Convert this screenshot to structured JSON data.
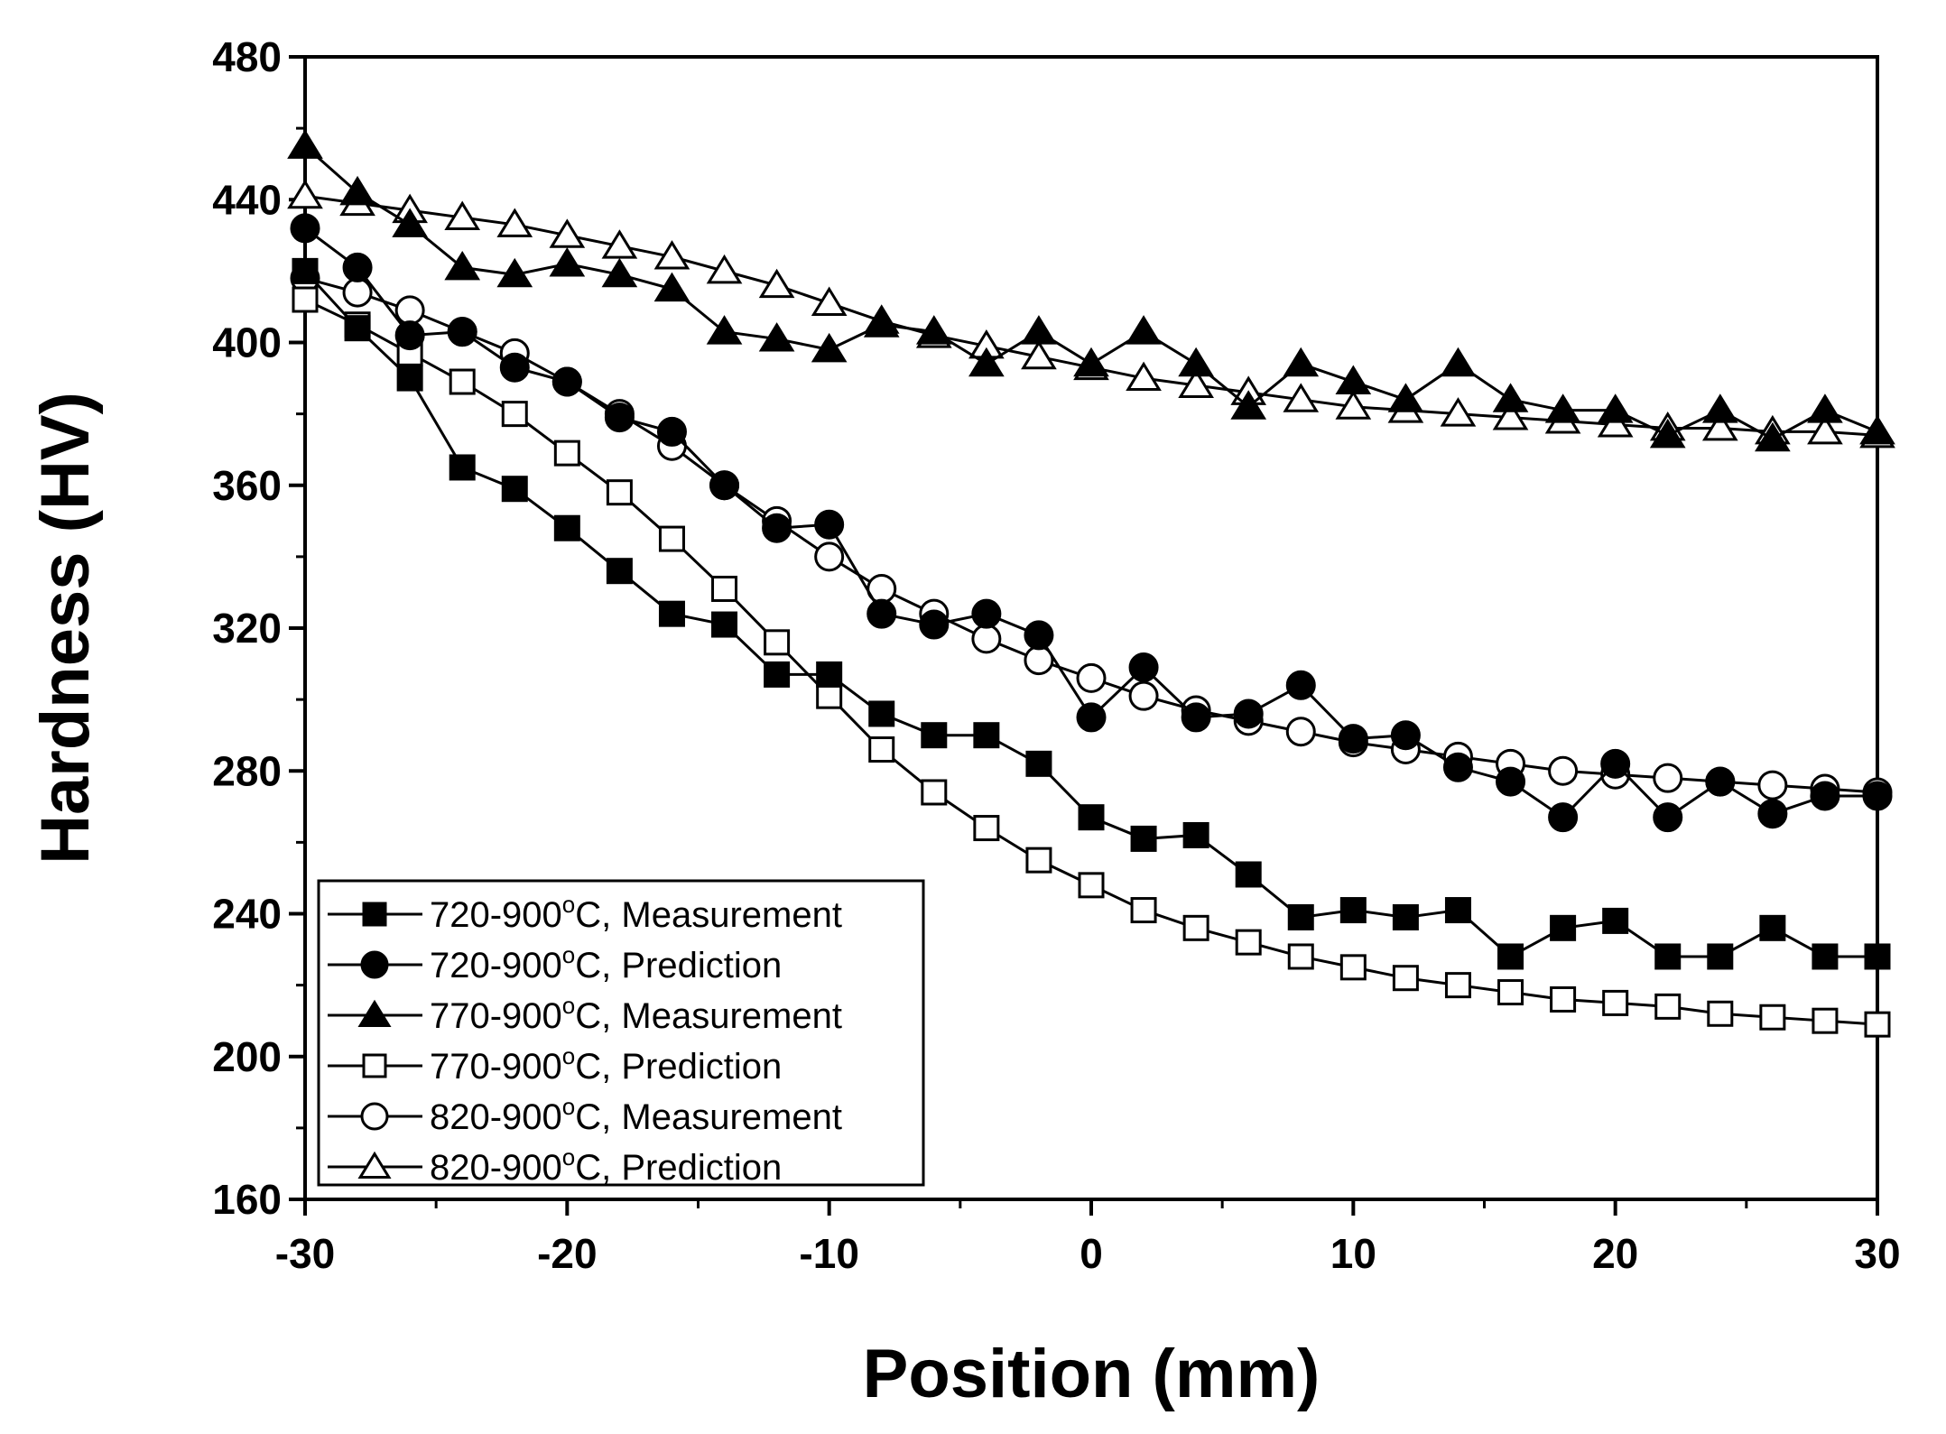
{
  "chart_data": {
    "type": "line",
    "title": "",
    "xlabel": "Position (mm)",
    "ylabel": "Hardness (HV)",
    "xlim": [
      -30,
      30
    ],
    "ylim": [
      160,
      480
    ],
    "xticks": [
      -30,
      -20,
      -10,
      0,
      10,
      20,
      30
    ],
    "yticks": [
      160,
      200,
      240,
      280,
      320,
      360,
      400,
      440,
      480
    ],
    "legend_position": "bottom-left",
    "series": [
      {
        "name": "720-900°C, Measurement",
        "legend": {
          "pre": "720-900",
          "sup": "o",
          "post": "C, Measurement"
        },
        "marker": "square",
        "filled": true,
        "x": [
          -30,
          -28,
          -26,
          -24,
          -22,
          -20,
          -18,
          -16,
          -14,
          -12,
          -10,
          -8,
          -6,
          -4,
          -2,
          0,
          2,
          4,
          6,
          8,
          10,
          12,
          14,
          16,
          18,
          20,
          22,
          24,
          26,
          28,
          30
        ],
        "y": [
          420,
          404,
          390,
          365,
          359,
          348,
          336,
          324,
          321,
          307,
          307,
          296,
          290,
          290,
          282,
          267,
          261,
          262,
          251,
          239,
          241,
          239,
          241,
          228,
          236,
          238,
          228,
          228,
          236,
          228,
          228
        ]
      },
      {
        "name": "720-900°C, Prediction",
        "legend": {
          "pre": "720-900",
          "sup": "o",
          "post": "C, Prediction"
        },
        "marker": "circle",
        "filled": true,
        "x": [
          -30,
          -28,
          -26,
          -24,
          -22,
          -20,
          -18,
          -16,
          -14,
          -12,
          -10,
          -8,
          -6,
          -4,
          -2,
          0,
          2,
          4,
          6,
          8,
          10,
          12,
          14,
          16,
          18,
          20,
          22,
          24,
          26,
          28,
          30
        ],
        "y": [
          432,
          421,
          402,
          403,
          393,
          389,
          379,
          375,
          360,
          348,
          349,
          324,
          321,
          324,
          318,
          295,
          309,
          295,
          296,
          304,
          289,
          290,
          281,
          277,
          267,
          282,
          267,
          277,
          268,
          273,
          273
        ]
      },
      {
        "name": "770-900°C, Measurement",
        "legend": {
          "pre": "770-900",
          "sup": "o",
          "post": "C, Measurement"
        },
        "marker": "triangle",
        "filled": true,
        "x": [
          -30,
          -28,
          -26,
          -24,
          -22,
          -20,
          -18,
          -16,
          -14,
          -12,
          -10,
          -8,
          -6,
          -4,
          -2,
          0,
          2,
          4,
          6,
          8,
          10,
          12,
          14,
          16,
          18,
          20,
          22,
          24,
          26,
          28,
          30
        ],
        "y": [
          455,
          442,
          433,
          421,
          419,
          422,
          419,
          415,
          403,
          401,
          398,
          405,
          403,
          394,
          403,
          394,
          403,
          394,
          382,
          394,
          389,
          384,
          394,
          384,
          381,
          381,
          374,
          381,
          373,
          381,
          375
        ]
      },
      {
        "name": "770-900°C, Prediction",
        "legend": {
          "pre": "770-900",
          "sup": "o",
          "post": "C, Prediction"
        },
        "marker": "square",
        "filled": false,
        "x": [
          -30,
          -28,
          -26,
          -24,
          -22,
          -20,
          -18,
          -16,
          -14,
          -12,
          -10,
          -8,
          -6,
          -4,
          -2,
          0,
          2,
          4,
          6,
          8,
          10,
          12,
          14,
          16,
          18,
          20,
          22,
          24,
          26,
          28,
          30
        ],
        "y": [
          412,
          405,
          397,
          389,
          380,
          369,
          358,
          345,
          331,
          316,
          301,
          286,
          274,
          264,
          255,
          248,
          241,
          236,
          232,
          228,
          225,
          222,
          220,
          218,
          216,
          215,
          214,
          212,
          211,
          210,
          209
        ]
      },
      {
        "name": "820-900°C, Measurement",
        "legend": {
          "pre": "820-900",
          "sup": "o",
          "post": "C, Measurement"
        },
        "marker": "circle",
        "filled": false,
        "x": [
          -30,
          -28,
          -26,
          -24,
          -22,
          -20,
          -18,
          -16,
          -14,
          -12,
          -10,
          -8,
          -6,
          -4,
          -2,
          0,
          2,
          4,
          6,
          8,
          10,
          12,
          14,
          16,
          18,
          20,
          22,
          24,
          26,
          28,
          30
        ],
        "y": [
          418,
          414,
          409,
          403,
          397,
          389,
          380,
          371,
          360,
          350,
          340,
          331,
          324,
          317,
          311,
          306,
          301,
          297,
          294,
          291,
          288,
          286,
          284,
          282,
          280,
          279,
          278,
          277,
          276,
          275,
          274
        ]
      },
      {
        "name": "820-900°C, Prediction",
        "legend": {
          "pre": "820-900",
          "sup": "o",
          "post": "C, Prediction"
        },
        "marker": "triangle",
        "filled": false,
        "x": [
          -30,
          -28,
          -26,
          -24,
          -22,
          -20,
          -18,
          -16,
          -14,
          -12,
          -10,
          -8,
          -6,
          -4,
          -2,
          0,
          2,
          4,
          6,
          8,
          10,
          12,
          14,
          16,
          18,
          20,
          22,
          24,
          26,
          28,
          30
        ],
        "y": [
          441,
          439,
          437,
          435,
          433,
          430,
          427,
          424,
          420,
          416,
          411,
          406,
          402,
          399,
          396,
          393,
          390,
          388,
          386,
          384,
          382,
          381,
          380,
          379,
          378,
          377,
          376,
          376,
          375,
          375,
          374
        ]
      }
    ]
  }
}
